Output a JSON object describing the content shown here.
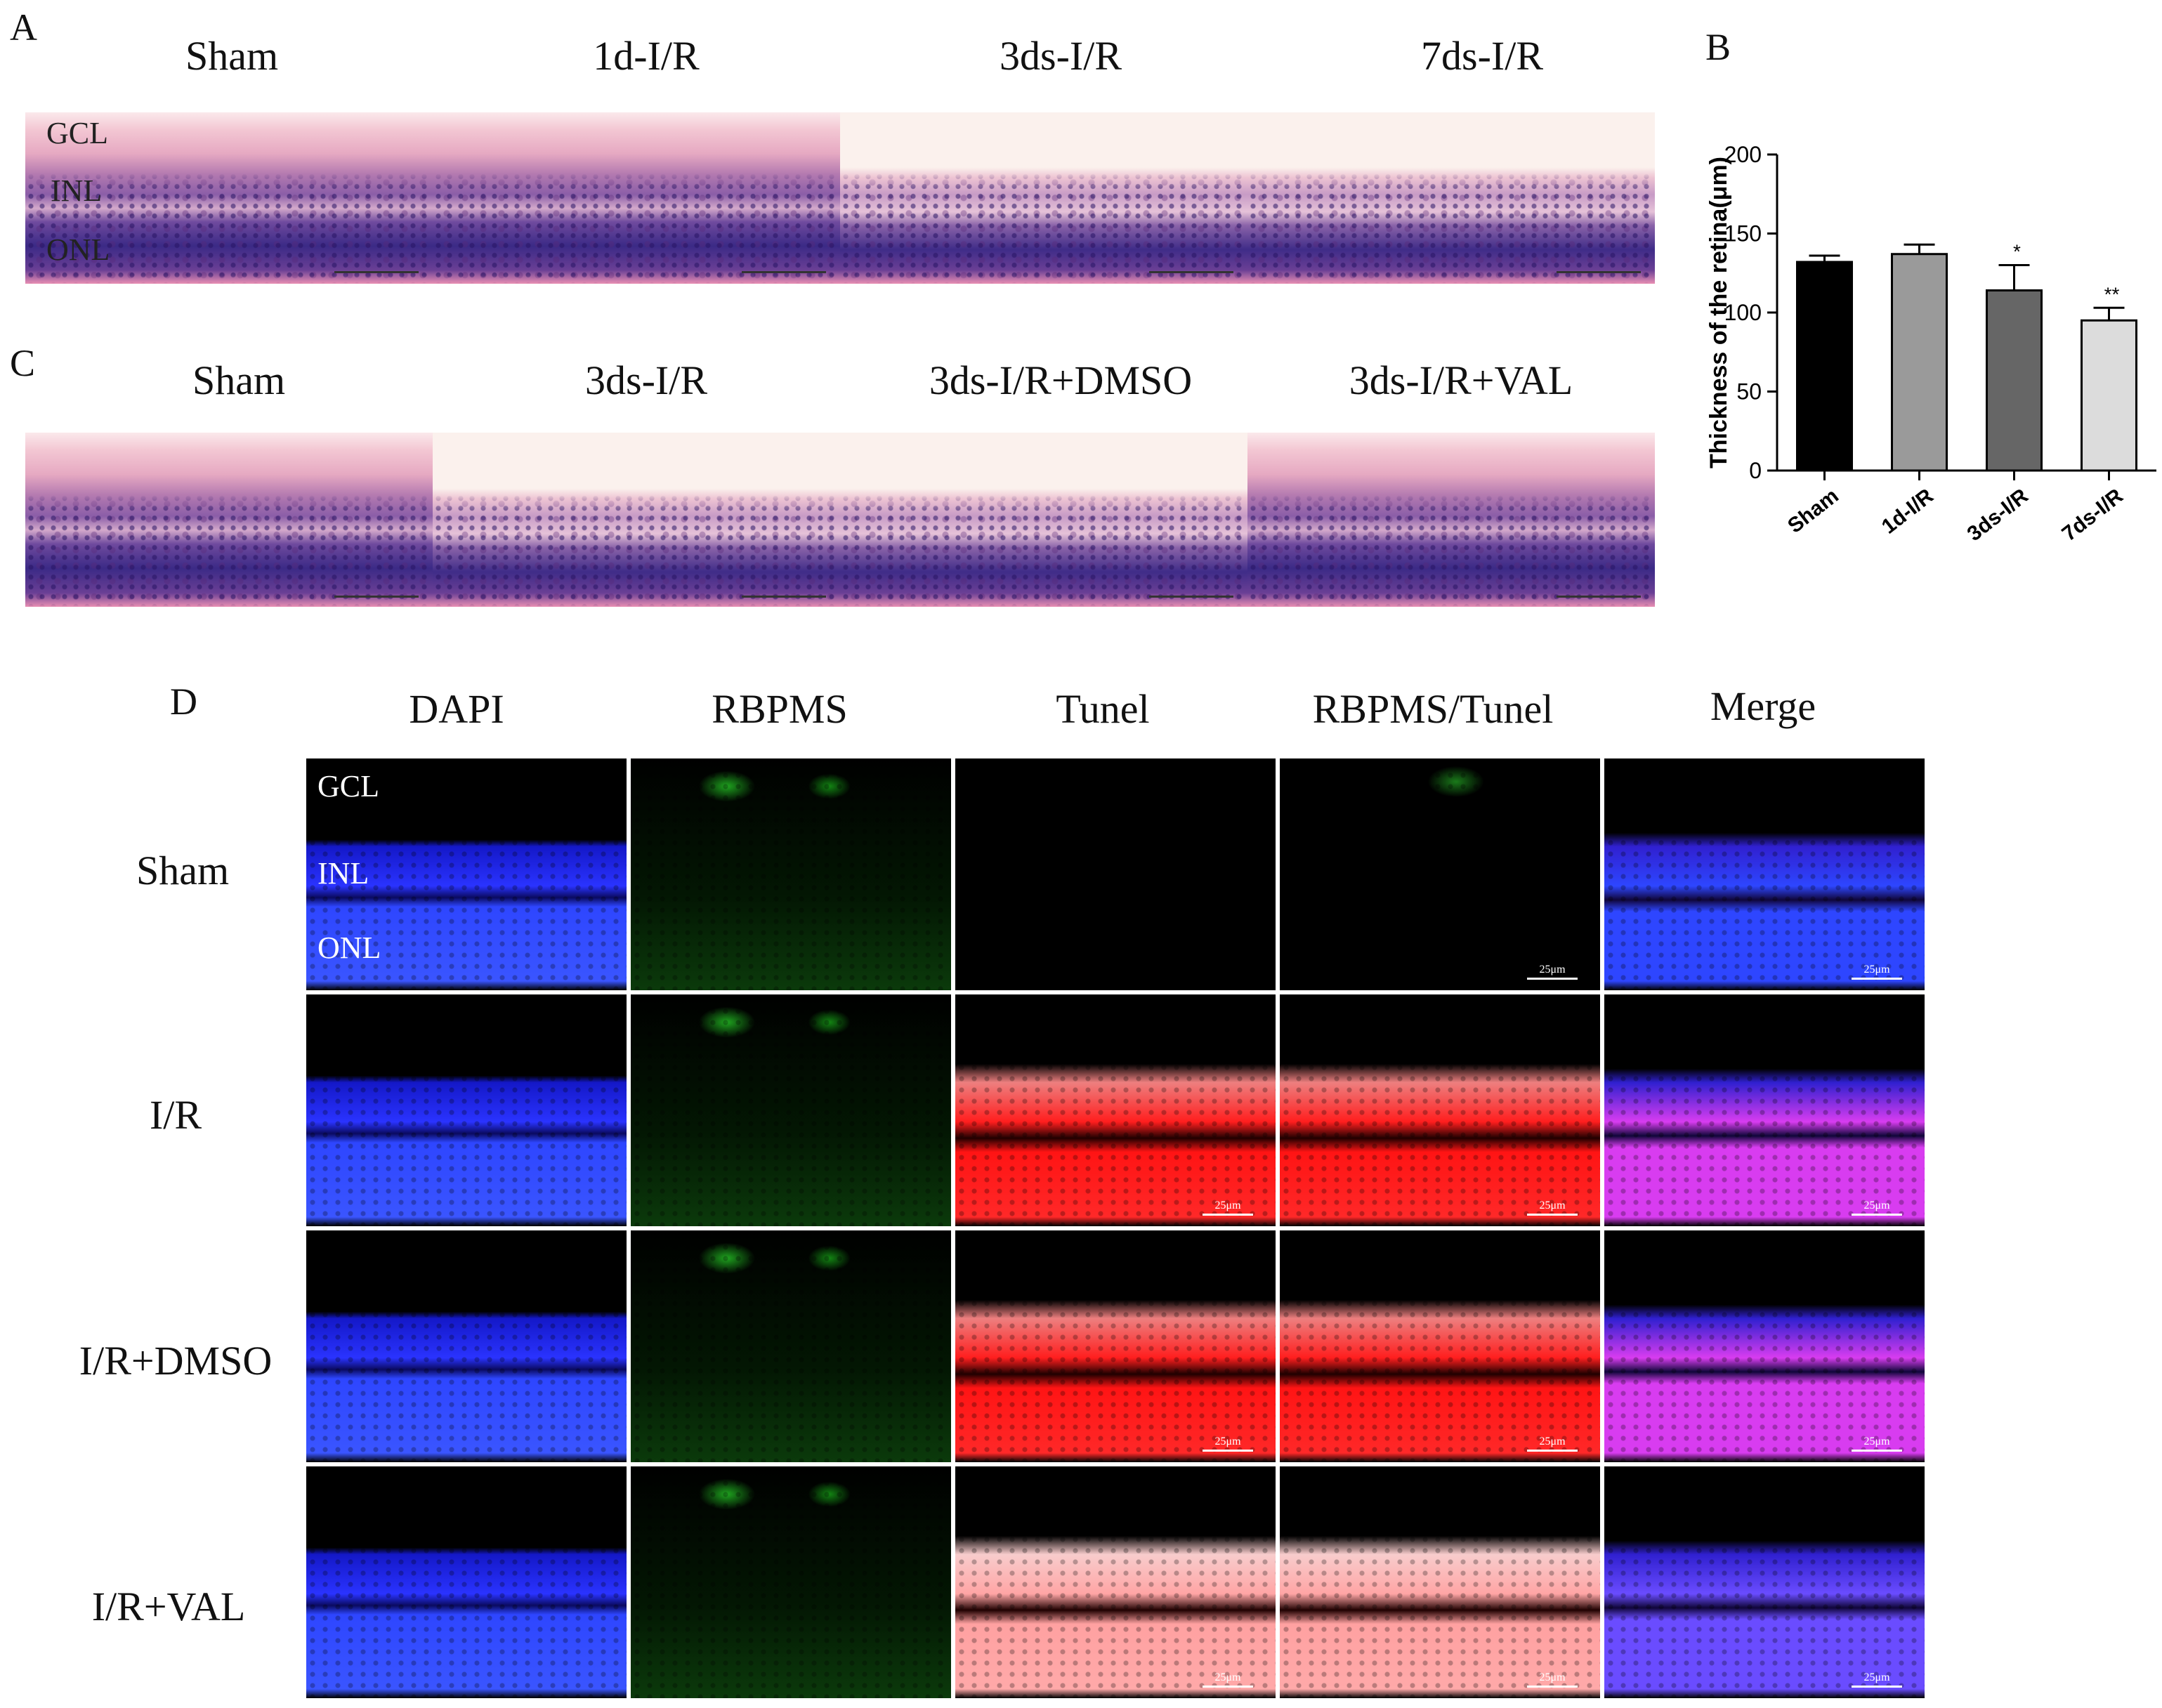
{
  "panel_a": {
    "letter": "A",
    "columns": [
      "Sham",
      "1d-I/R",
      "3ds-I/R",
      "7ds-I/R"
    ],
    "layers": [
      "GCL",
      "INL",
      "ONL"
    ]
  },
  "panel_b": {
    "letter": "B"
  },
  "panel_c": {
    "letter": "C",
    "columns": [
      "Sham",
      "3ds-I/R",
      "3ds-I/R+DMSO",
      "3ds-I/R+VAL"
    ]
  },
  "panel_d": {
    "letter": "D",
    "columns": [
      "DAPI",
      "RBPMS",
      "Tunel",
      "RBPMS/Tunel",
      "Merge"
    ],
    "rows": [
      "Sham",
      "I/R",
      "I/R+DMSO",
      "I/R+VAL"
    ],
    "layers": [
      "GCL",
      "INL",
      "ONL"
    ],
    "scale_label": "25μm"
  },
  "chart_data": {
    "type": "bar",
    "title": "",
    "xlabel": "",
    "ylabel": "Thickness of the retina(μm)",
    "categories": [
      "Sham",
      "1d-I/R",
      "3ds-I/R",
      "7ds-I/R"
    ],
    "values": [
      132,
      137,
      114,
      95
    ],
    "errors": [
      4,
      6,
      16,
      8
    ],
    "significance": [
      "",
      "",
      "*",
      "**"
    ],
    "ylim": [
      0,
      200
    ],
    "yticks": [
      0,
      50,
      100,
      150,
      200
    ],
    "colors": [
      "#000000",
      "#9a9a9a",
      "#666666",
      "#dcdcdc"
    ]
  }
}
